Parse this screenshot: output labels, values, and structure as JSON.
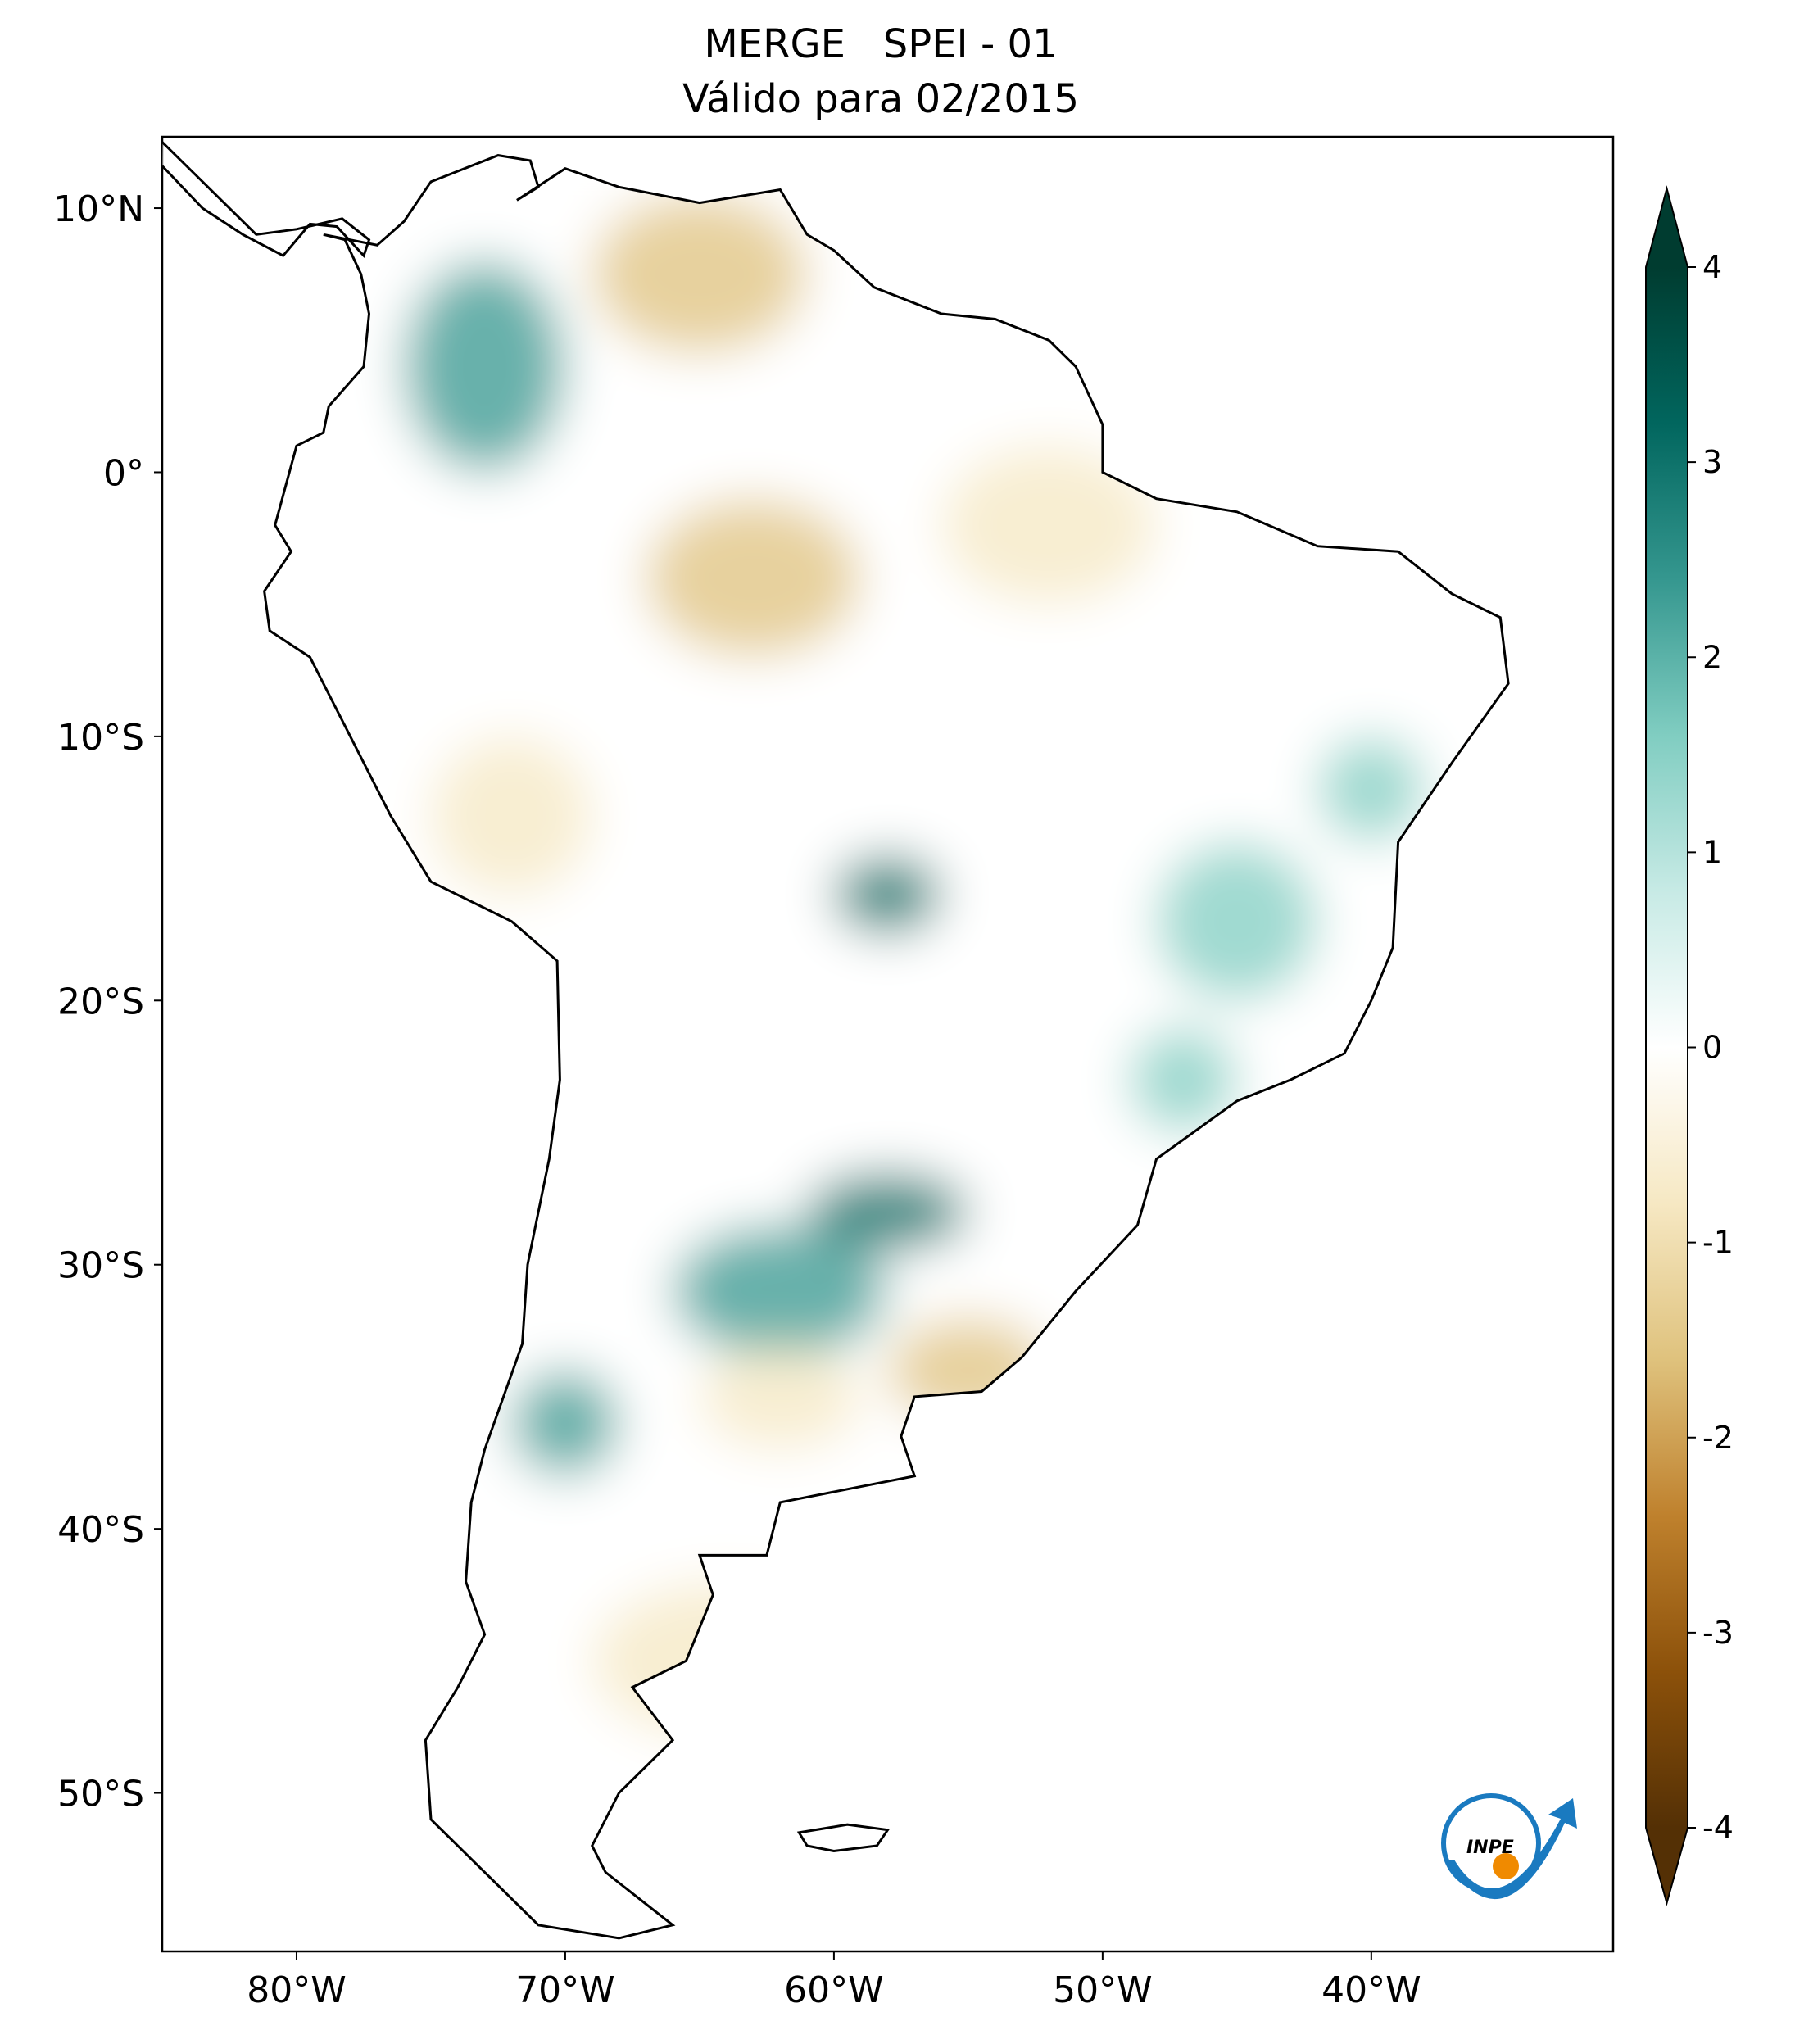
{
  "chart_data": {
    "type": "map",
    "title": "MERGE   SPEI - 01",
    "subtitle": "Válido para 02/2015",
    "xlim": [
      -85,
      -31
    ],
    "ylim": [
      -56,
      12.7
    ],
    "xticks": [
      {
        "value": -80,
        "label": "80°W"
      },
      {
        "value": -70,
        "label": "70°W"
      },
      {
        "value": -60,
        "label": "60°W"
      },
      {
        "value": -50,
        "label": "50°W"
      },
      {
        "value": -40,
        "label": "40°W"
      }
    ],
    "yticks": [
      {
        "value": 10,
        "label": "10°N"
      },
      {
        "value": 0,
        "label": "0°"
      },
      {
        "value": -10,
        "label": "10°S"
      },
      {
        "value": -20,
        "label": "20°S"
      },
      {
        "value": -30,
        "label": "30°S"
      },
      {
        "value": -40,
        "label": "40°S"
      },
      {
        "value": -50,
        "label": "50°S"
      }
    ],
    "colorbar": {
      "lim": [
        -4,
        4
      ],
      "ticks": [
        -4,
        -3,
        -2,
        -1,
        0,
        1,
        2,
        3,
        4
      ],
      "colors": [
        "#543005",
        "#8c510a",
        "#bf812d",
        "#dfc27d",
        "#f6e8c3",
        "#ffffff",
        "#c7eae5",
        "#80cdc1",
        "#35978f",
        "#01665e",
        "#003c30"
      ]
    },
    "logo": "INPE"
  }
}
